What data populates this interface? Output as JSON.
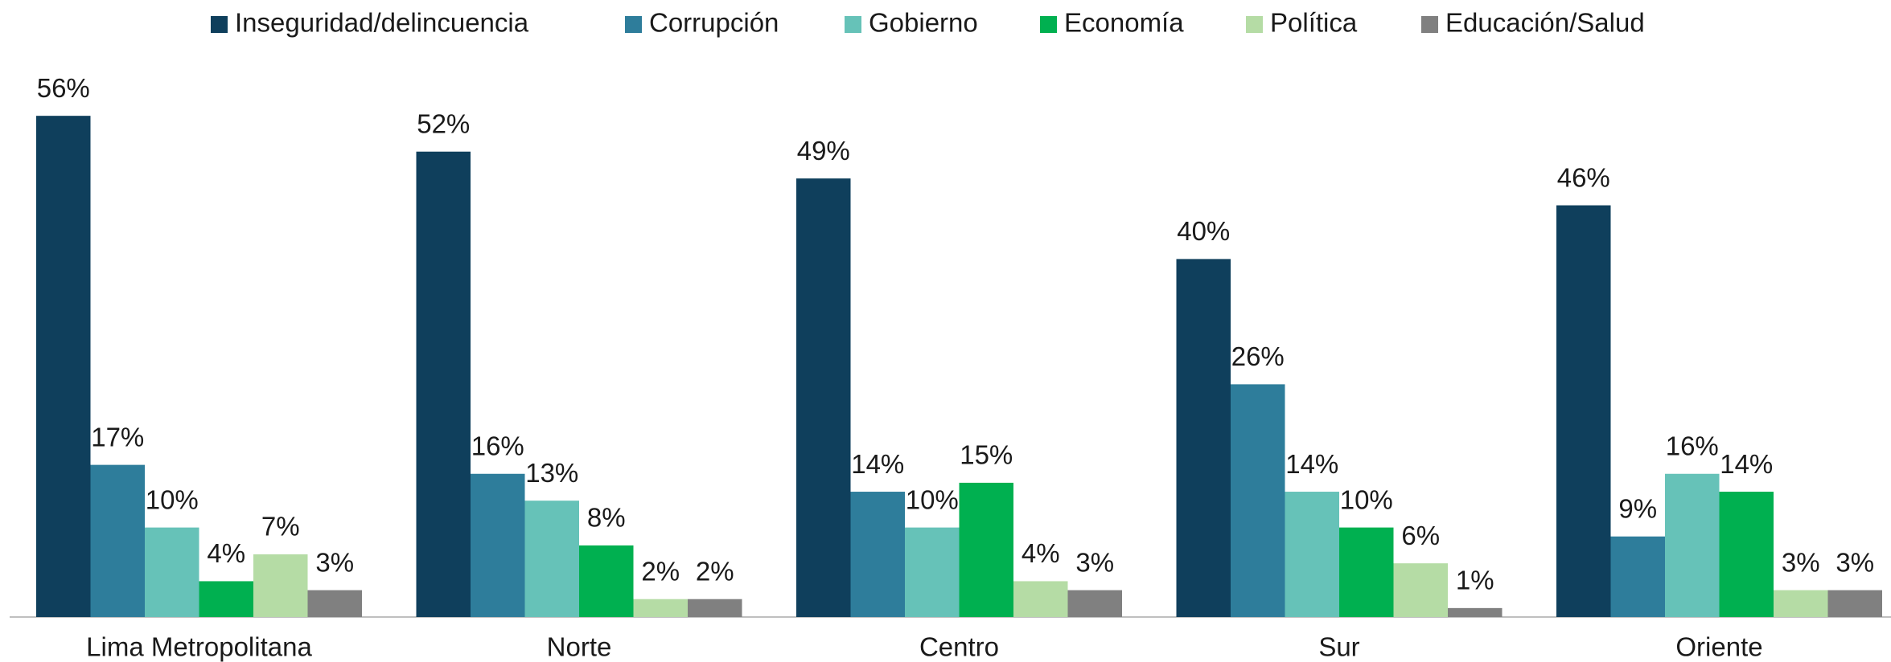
{
  "chart_data": {
    "type": "bar",
    "categories": [
      "Lima Metropolitana",
      "Norte",
      "Centro",
      "Sur",
      "Oriente"
    ],
    "series": [
      {
        "name": "Inseguridad/delincuencia",
        "color": "#0f3f5c",
        "values": [
          56,
          52,
          49,
          40,
          46
        ],
        "value_labels": [
          "56%",
          "52%",
          "49%",
          "40%",
          "46%"
        ]
      },
      {
        "name": "Corrupción",
        "color": "#2e7d9b",
        "values": [
          17,
          16,
          14,
          26,
          9
        ],
        "value_labels": [
          "17%",
          "16%",
          "14%",
          "26%",
          "9%"
        ]
      },
      {
        "name": "Gobierno",
        "color": "#66c2b8",
        "values": [
          10,
          13,
          10,
          14,
          16
        ],
        "value_labels": [
          "10%",
          "13%",
          "10%",
          "14%",
          "16%"
        ]
      },
      {
        "name": "Economía",
        "color": "#00b050",
        "values": [
          4,
          8,
          15,
          10,
          14
        ],
        "value_labels": [
          "4%",
          "8%",
          "15%",
          "10%",
          "14%"
        ]
      },
      {
        "name": "Política",
        "color": "#b5dca5",
        "values": [
          7,
          2,
          4,
          6,
          3
        ],
        "value_labels": [
          "7%",
          "2%",
          "4%",
          "6%",
          "3%"
        ]
      },
      {
        "name": "Educación/Salud",
        "color": "#808080",
        "values": [
          3,
          2,
          3,
          1,
          3
        ],
        "value_labels": [
          "3%",
          "2%",
          "3%",
          "1%",
          "3%"
        ]
      }
    ],
    "legend": "top"
  }
}
